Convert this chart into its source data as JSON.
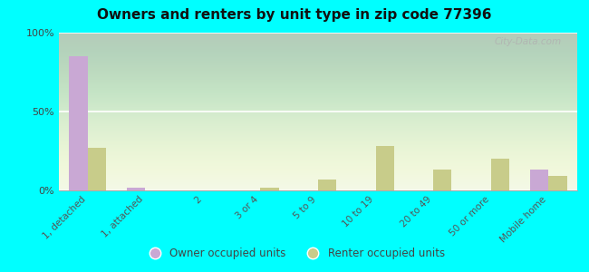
{
  "title": "Owners and renters by unit type in zip code 77396",
  "categories": [
    "1, detached",
    "1, attached",
    "2",
    "3 or 4",
    "5 to 9",
    "10 to 19",
    "20 to 49",
    "50 or more",
    "Mobile home"
  ],
  "owner_values": [
    85,
    2,
    0,
    0,
    0,
    0,
    0,
    0,
    13
  ],
  "renter_values": [
    27,
    0,
    0,
    2,
    7,
    28,
    13,
    20,
    9
  ],
  "owner_color": "#c9a8d4",
  "renter_color": "#c8cc8a",
  "background_color": "#00ffff",
  "ylim": [
    0,
    100
  ],
  "yticks": [
    0,
    50,
    100
  ],
  "ytick_labels": [
    "0%",
    "50%",
    "100%"
  ],
  "watermark": "City-Data.com",
  "legend_owner": "Owner occupied units",
  "legend_renter": "Renter occupied units",
  "bar_width": 0.32
}
